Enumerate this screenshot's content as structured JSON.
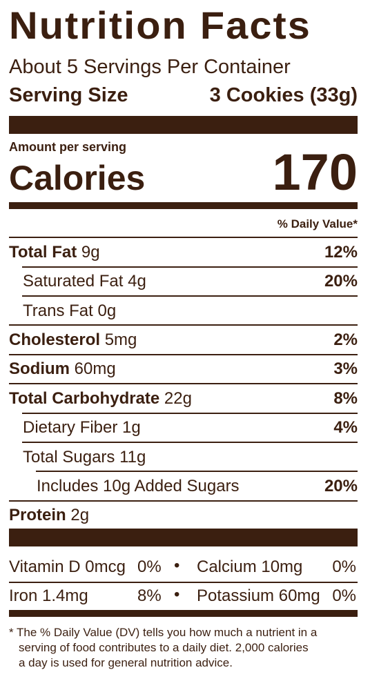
{
  "title": "Nutrition Facts",
  "servings_per_container": "About 5 Servings Per Container",
  "serving_size_label": "Serving Size",
  "serving_size_value": "3 Cookies (33g)",
  "amount_per_serving": "Amount per serving",
  "calories_label": "Calories",
  "calories_value": "170",
  "daily_value_header": "% Daily Value*",
  "nutrients": [
    {
      "name": "Total Fat",
      "amount": "9g",
      "dv": "12%"
    },
    {
      "name": "Saturated Fat",
      "amount": "4g",
      "dv": "20%"
    },
    {
      "name": "Trans Fat",
      "amount": "0g",
      "dv": ""
    },
    {
      "name": "Cholesterol",
      "amount": "5mg",
      "dv": "2%"
    },
    {
      "name": "Sodium",
      "amount": "60mg",
      "dv": "3%"
    },
    {
      "name": "Total Carbohydrate",
      "amount": "22g",
      "dv": "8%"
    },
    {
      "name": "Dietary Fiber",
      "amount": "1g",
      "dv": "4%"
    },
    {
      "name": "Total Sugars",
      "amount": "11g",
      "dv": ""
    },
    {
      "name": "Includes 10g Added Sugars",
      "amount": "",
      "dv": "20%"
    },
    {
      "name": "Protein",
      "amount": "2g",
      "dv": ""
    }
  ],
  "vitamins": [
    {
      "name": "Vitamin D",
      "amount": "0mcg",
      "dv": "0%"
    },
    {
      "name": "Calcium",
      "amount": "10mg",
      "dv": "0%"
    },
    {
      "name": "Iron",
      "amount": "1.4mg",
      "dv": "8%"
    },
    {
      "name": "Potassium",
      "amount": "60mg",
      "dv": "0%"
    }
  ],
  "bullet": "•",
  "footnote": {
    "line1": "* The % Daily Value (DV) tells you how much a nutrient in a",
    "line2": "serving of food contributes to a daily diet. 2,000 calories",
    "line3": "a day is used for general nutrition advice."
  },
  "colors": {
    "ink": "#3b1f10",
    "background": "#ffffff"
  }
}
